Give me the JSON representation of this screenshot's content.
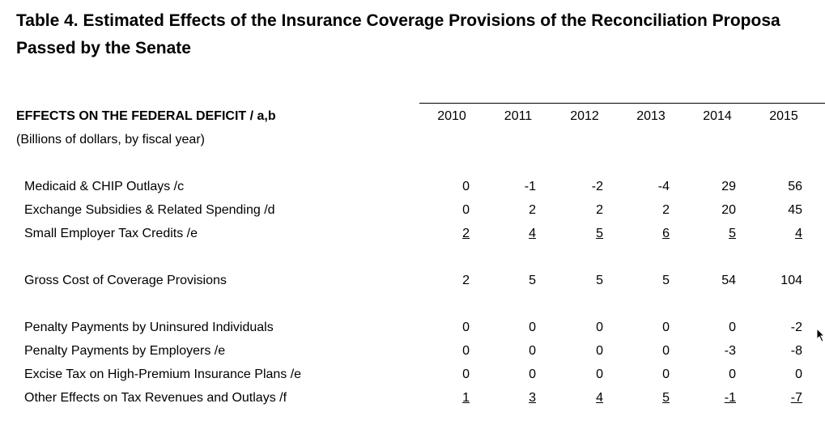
{
  "title_line1": "Table 4. Estimated Effects of the Insurance Coverage Provisions of the Reconciliation Proposa",
  "title_line2": "Passed by the Senate",
  "section_heading": "EFFECTS ON THE FEDERAL DEFICIT / a,b",
  "units_note": "(Billions of dollars, by fiscal year)",
  "years": [
    "2010",
    "2011",
    "2012",
    "2013",
    "2014",
    "2015"
  ],
  "rows": [
    {
      "label": "Medicaid & CHIP Outlays /c",
      "values": [
        "0",
        "-1",
        "-2",
        "-4",
        "29",
        "56"
      ],
      "underline": false
    },
    {
      "label": "Exchange Subsidies & Related Spending /d",
      "values": [
        "0",
        "2",
        "2",
        "2",
        "20",
        "45"
      ],
      "underline": false
    },
    {
      "label": "Small Employer Tax Credits /e",
      "values": [
        "2",
        "4",
        "5",
        "6",
        "5",
        "4"
      ],
      "underline": true
    },
    {
      "label": "Gross Cost of Coverage Provisions",
      "values": [
        "2",
        "5",
        "5",
        "5",
        "54",
        "104"
      ],
      "underline": false
    },
    {
      "label": "Penalty Payments by Uninsured Individuals",
      "values": [
        "0",
        "0",
        "0",
        "0",
        "0",
        "-2"
      ],
      "underline": false
    },
    {
      "label": "Penalty Payments by Employers /e",
      "values": [
        "0",
        "0",
        "0",
        "0",
        "-3",
        "-8"
      ],
      "underline": false
    },
    {
      "label": "Excise Tax on High-Premium Insurance Plans /e",
      "values": [
        "0",
        "0",
        "0",
        "0",
        "0",
        "0"
      ],
      "underline": false
    },
    {
      "label": "Other Effects on Tax Revenues and Outlays /f",
      "values": [
        "1",
        "3",
        "4",
        "5",
        "-1",
        "-7"
      ],
      "underline": true
    }
  ]
}
